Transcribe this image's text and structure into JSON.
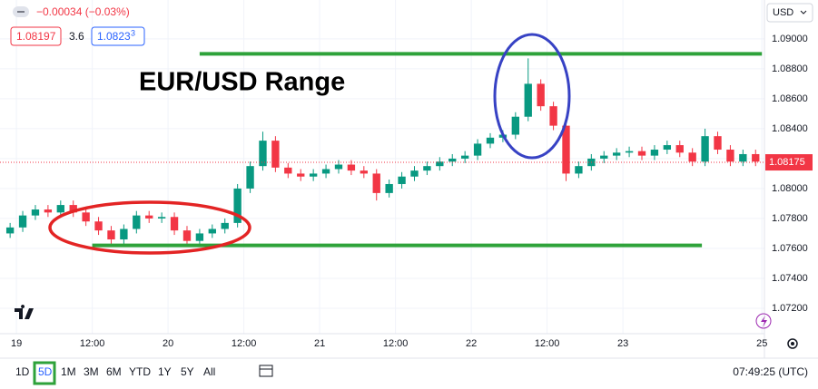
{
  "chart_data": {
    "type": "candlestick",
    "title": "EUR/USD Range",
    "change": "−0.00034 (−0.03%)",
    "bid": 1.08197,
    "spread": 3.6,
    "ask": "1.0823",
    "ask_pip": "3",
    "currency": "USD",
    "timeframes": [
      "1D",
      "5D",
      "1M",
      "3M",
      "6M",
      "YTD",
      "1Y",
      "5Y",
      "All"
    ],
    "active_timeframe": "5D",
    "clock": "07:49:25 (UTC)",
    "x": [
      -1,
      1,
      3,
      5,
      7,
      9,
      11,
      13,
      15,
      17,
      19,
      21,
      23,
      25,
      27,
      29,
      31,
      33,
      35,
      37,
      39,
      41,
      43,
      45,
      47,
      49,
      51,
      53,
      55,
      57,
      59,
      61,
      63,
      65,
      67,
      69,
      71,
      73,
      75,
      77,
      79,
      81,
      83,
      85,
      87,
      89,
      91,
      93,
      95,
      97,
      99,
      101,
      103,
      105,
      107,
      109,
      111,
      113,
      115,
      117
    ],
    "open": [
      1.077,
      1.0774,
      1.0782,
      1.0786,
      1.0784,
      1.0789,
      1.0784,
      1.0778,
      1.0772,
      1.0766,
      1.0773,
      1.0782,
      1.078,
      1.0781,
      1.0772,
      1.0765,
      1.077,
      1.0773,
      1.0777,
      1.08,
      1.0815,
      1.0832,
      1.0814,
      1.081,
      1.0808,
      1.081,
      1.0813,
      1.0816,
      1.0812,
      1.081,
      1.0797,
      1.0803,
      1.0808,
      1.0812,
      1.0815,
      1.0818,
      1.082,
      1.0822,
      1.083,
      1.0834,
      1.0836,
      1.0848,
      1.087,
      1.0855,
      1.0842,
      1.081,
      1.0815,
      1.082,
      1.0822,
      1.0824,
      1.0825,
      1.0822,
      1.0826,
      1.0829,
      1.0824,
      1.0818,
      1.0835,
      1.0826,
      1.0818,
      1.0823
    ],
    "high": [
      1.0777,
      1.0785,
      1.0789,
      1.0789,
      1.0792,
      1.0792,
      1.0787,
      1.0781,
      1.0775,
      1.0776,
      1.0785,
      1.0785,
      1.0784,
      1.0784,
      1.0775,
      1.0773,
      1.0776,
      1.078,
      1.0803,
      1.0818,
      1.0838,
      1.0835,
      1.0817,
      1.0813,
      1.0813,
      1.0816,
      1.0819,
      1.0819,
      1.0815,
      1.0813,
      1.0806,
      1.0811,
      1.0815,
      1.0818,
      1.0821,
      1.0823,
      1.0825,
      1.0833,
      1.0837,
      1.0839,
      1.0851,
      1.0887,
      1.0873,
      1.0858,
      1.0845,
      1.0818,
      1.0823,
      1.0825,
      1.0827,
      1.0828,
      1.0828,
      1.0829,
      1.0832,
      1.0832,
      1.0827,
      1.084,
      1.0838,
      1.0829,
      1.0826,
      1.0826
    ],
    "low": [
      1.0767,
      1.0771,
      1.0779,
      1.0781,
      1.0781,
      1.0781,
      1.0775,
      1.0769,
      1.0763,
      1.0763,
      1.077,
      1.0777,
      1.0777,
      1.0769,
      1.0762,
      1.0762,
      1.0767,
      1.077,
      1.0774,
      1.0797,
      1.0812,
      1.0811,
      1.0807,
      1.0805,
      1.0805,
      1.0807,
      1.081,
      1.0809,
      1.0807,
      1.0792,
      1.0794,
      1.08,
      1.0805,
      1.0809,
      1.0812,
      1.0815,
      1.0817,
      1.0819,
      1.0827,
      1.0831,
      1.0833,
      1.0845,
      1.0852,
      1.0839,
      1.0805,
      1.0807,
      1.0812,
      1.0817,
      1.0819,
      1.0821,
      1.0819,
      1.0819,
      1.0823,
      1.0821,
      1.0815,
      1.0815,
      1.0823,
      1.0815,
      1.0815,
      1.0815
    ],
    "close": [
      1.0774,
      1.0782,
      1.0786,
      1.0784,
      1.0789,
      1.0784,
      1.0778,
      1.0772,
      1.0766,
      1.0773,
      1.0782,
      1.078,
      1.0781,
      1.0772,
      1.0765,
      1.077,
      1.0773,
      1.0777,
      1.08,
      1.0815,
      1.0832,
      1.0814,
      1.081,
      1.0808,
      1.081,
      1.0813,
      1.0816,
      1.0812,
      1.081,
      1.0797,
      1.0803,
      1.0808,
      1.0812,
      1.0815,
      1.0818,
      1.082,
      1.0822,
      1.083,
      1.0834,
      1.0836,
      1.0848,
      1.087,
      1.0855,
      1.0842,
      1.081,
      1.0815,
      1.082,
      1.0822,
      1.0824,
      1.0825,
      1.0822,
      1.0826,
      1.0829,
      1.0824,
      1.0818,
      1.0835,
      1.0826,
      1.0818,
      1.0823,
      1.0818
    ],
    "up_color": "#089981",
    "down_color": "#f23645",
    "last_price": 1.08175,
    "levels": [
      {
        "value": 1.089,
        "x": [
          29,
          118
        ],
        "color": "#2ea23a"
      },
      {
        "value": 1.0762,
        "x": [
          12,
          108.5
        ],
        "color": "#2ea23a"
      }
    ],
    "xlim": [
      -2.6,
      118.4
    ],
    "xticks": [
      {
        "value": 0,
        "label": "19"
      },
      {
        "value": 12,
        "label": "12:00"
      },
      {
        "value": 24,
        "label": "20"
      },
      {
        "value": 36,
        "label": "12:00"
      },
      {
        "value": 48,
        "label": "21"
      },
      {
        "value": 60,
        "label": "12:00"
      },
      {
        "value": 72,
        "label": "22"
      },
      {
        "value": 84,
        "label": "12:00"
      },
      {
        "value": 96,
        "label": "23"
      },
      {
        "value": 118,
        "label": "25"
      }
    ],
    "ylim": [
      1.0703,
      1.0926
    ],
    "yticks": [
      {
        "value": 1.09,
        "label": "1.09000"
      },
      {
        "value": 1.088,
        "label": "1.08800"
      },
      {
        "value": 1.086,
        "label": "1.08600"
      },
      {
        "value": 1.084,
        "label": "1.08400"
      },
      {
        "value": 1.082,
        "label": "1.08200"
      },
      {
        "value": 1.08,
        "label": "1.08000"
      },
      {
        "value": 1.078,
        "label": "1.07800"
      },
      {
        "value": 1.076,
        "label": "1.07600"
      },
      {
        "value": 1.074,
        "label": "1.07400"
      },
      {
        "value": 1.072,
        "label": "1.07200"
      }
    ],
    "grid": true
  }
}
